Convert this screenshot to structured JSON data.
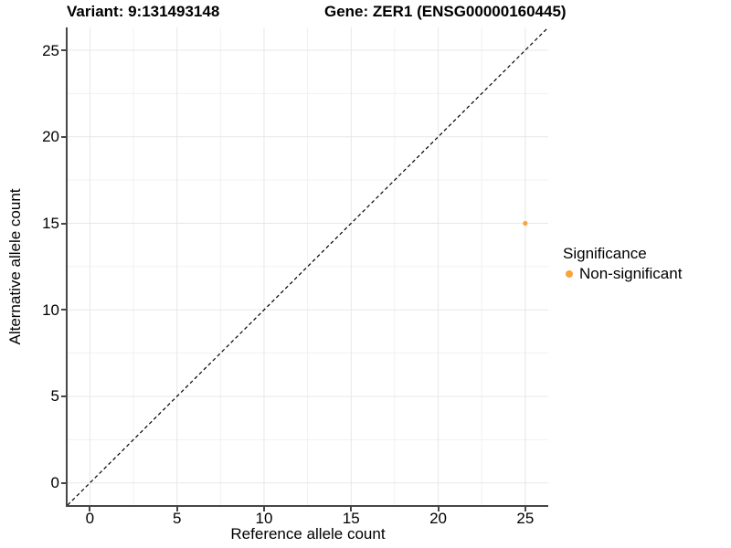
{
  "chart_data": {
    "type": "scatter",
    "titles": {
      "variant": "Variant: 9:131493148",
      "gene": "Gene: ZER1 (ENSG00000160445)"
    },
    "xlabel": "Reference allele count",
    "ylabel": "Alternative allele count",
    "xlim": [
      -1.28,
      26.32
    ],
    "ylim": [
      -1.28,
      26.32
    ],
    "x_ticks": [
      0,
      5,
      10,
      15,
      20,
      25
    ],
    "y_ticks": [
      0,
      5,
      10,
      15,
      20,
      25
    ],
    "grid": {
      "major": [
        0,
        5,
        10,
        15,
        20,
        25
      ],
      "minor": [
        2.5,
        7.5,
        12.5,
        17.5,
        22.5
      ]
    },
    "reference_line": {
      "slope": 1,
      "intercept": 0,
      "style": "dashed",
      "color": "#000000"
    },
    "series": [
      {
        "name": "Non-significant",
        "color": "#FAA43C",
        "points": [
          [
            25,
            15
          ]
        ]
      }
    ],
    "legend": {
      "title": "Significance",
      "position": "right"
    }
  },
  "colors": {
    "axis_line": "#464646",
    "grid_major": "#e7e7e7",
    "grid_minor": "#f1f1f1",
    "text": "#000000"
  }
}
